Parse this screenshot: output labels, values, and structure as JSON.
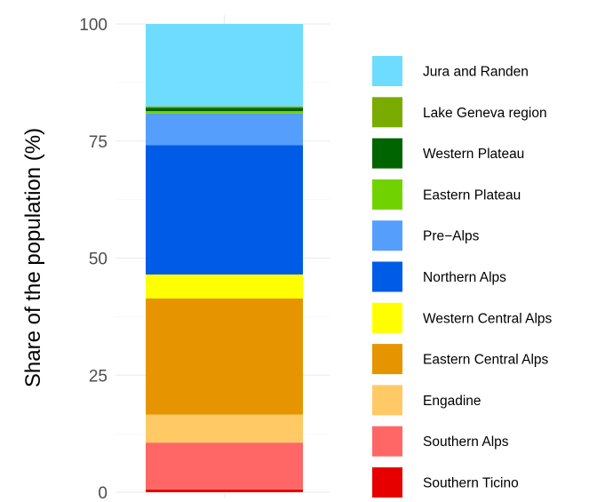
{
  "chart_data": {
    "type": "bar",
    "stacked": true,
    "title": "",
    "xlabel": "",
    "ylabel": "Share of the population (%)",
    "ylim": [
      0,
      100
    ],
    "yticks": [
      0,
      25,
      50,
      75,
      100
    ],
    "grid": true,
    "legend_position": "right",
    "categories": [
      ""
    ],
    "series": [
      {
        "name": "Southern Ticino",
        "color": "#e60000",
        "values": [
          0.6
        ]
      },
      {
        "name": "Southern Alps",
        "color": "#ff6666",
        "values": [
          10.0
        ]
      },
      {
        "name": "Engadine",
        "color": "#ffc966",
        "values": [
          6.0
        ]
      },
      {
        "name": "Eastern Central Alps",
        "color": "#e69500",
        "values": [
          24.8
        ]
      },
      {
        "name": "Western Central Alps",
        "color": "#ffff00",
        "values": [
          5.1
        ]
      },
      {
        "name": "Northern Alps",
        "color": "#005ce6",
        "values": [
          27.6
        ]
      },
      {
        "name": "Pre−Alps",
        "color": "#559efc",
        "values": [
          6.8
        ]
      },
      {
        "name": "Eastern Plateau",
        "color": "#70d300",
        "values": [
          0.5
        ]
      },
      {
        "name": "Western Plateau",
        "color": "#006400",
        "values": [
          0.7
        ]
      },
      {
        "name": "Lake Geneva region",
        "color": "#7aab00",
        "values": [
          0.3
        ]
      },
      {
        "name": "Jura and Randen",
        "color": "#6ddcfe",
        "values": [
          17.6
        ]
      }
    ]
  }
}
